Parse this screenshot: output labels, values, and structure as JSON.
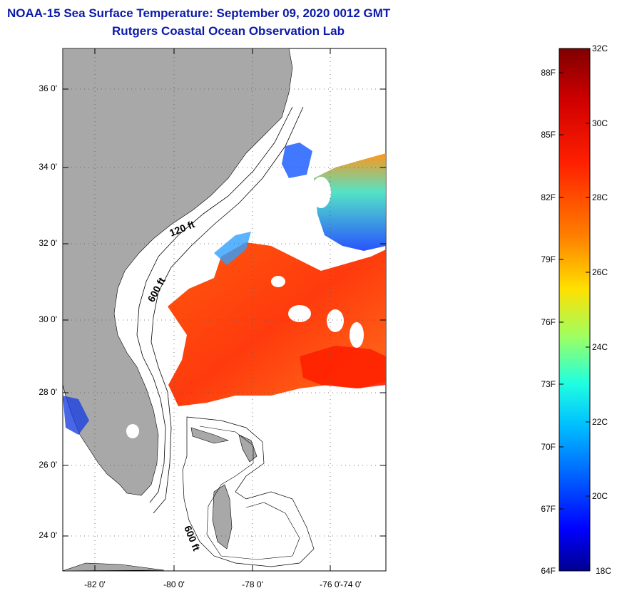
{
  "header": {
    "title": "NOAA-15 Sea Surface Temperature:  September 09, 2020 0012 GMT",
    "subtitle": "Rutgers Coastal Ocean Observation Lab"
  },
  "map": {
    "latitude_labels": [
      "36 0'",
      "34 0'",
      "32 0'",
      "30 0'",
      "28 0'",
      "26 0'",
      "24 0'"
    ],
    "longitude_labels": [
      "-82 0'",
      "-80 0'",
      "-78 0'",
      "-76 0'",
      "-74 0'"
    ],
    "isobath_labels": [
      "120 ft",
      "600 ft",
      "600 ft"
    ],
    "land_color": "#a8a8a8",
    "grid": "dotted"
  },
  "colorbar": {
    "fahrenheit_labels": [
      "88F",
      "85F",
      "82F",
      "79F",
      "76F",
      "73F",
      "70F",
      "67F",
      "64F"
    ],
    "celsius_labels": [
      "32C",
      "30C",
      "28C",
      "26C",
      "24C",
      "22C",
      "20C",
      "18C"
    ],
    "range_c": [
      18,
      32
    ],
    "colors": [
      "#00008f",
      "#0000ff",
      "#0080ff",
      "#00ffff",
      "#80ff80",
      "#ffff00",
      "#ff8000",
      "#ff0000",
      "#800000"
    ]
  }
}
